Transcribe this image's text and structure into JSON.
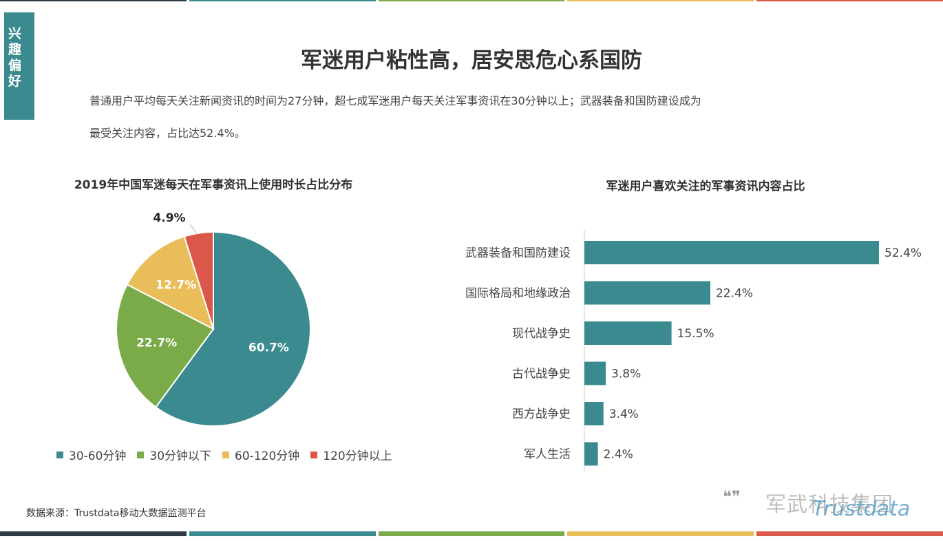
{
  "side_tab": [
    "兴",
    "趣",
    "偏",
    "好"
  ],
  "main_title": "军迷用户粘性高，居安思危心系国防",
  "description": [
    "普通用户平均每天关注新闻资讯的时间为27分钟，超七成军迷用户每天关注军事资讯在30分钟以上；武器装备和国防建设成为",
    "最受关注内容，占比达52.4%。"
  ],
  "source": "数据来源：Trustdata移动大数据监测平台",
  "watermark": {
    "text": "军武科技集团",
    "logo": "Trustdata"
  },
  "colors": {
    "teal": "#3a8a8f",
    "green": "#7aab48",
    "yellow": "#e8bd5a",
    "red": "#d9584a"
  },
  "stripe_colors": [
    "#2f3a45",
    "#3a8a8f",
    "#7aab48",
    "#e8bd5a",
    "#d9584a"
  ],
  "chart_data": [
    {
      "type": "pie",
      "title": "2019年中国军迷每天在军事资讯上使用时长占比分布",
      "slices": [
        {
          "label": "30-60分钟",
          "value": 60.7,
          "text": "60.7%",
          "color": "#3a8a8f"
        },
        {
          "label": "30分钟以下",
          "value": 22.7,
          "text": "22.7%",
          "color": "#7aab48"
        },
        {
          "label": "60-120分钟",
          "value": 12.7,
          "text": "12.7%",
          "color": "#e8bd5a"
        },
        {
          "label": "120分钟以上",
          "value": 4.9,
          "text": "4.9%",
          "color": "#d9584a"
        }
      ],
      "legend": "bottom"
    },
    {
      "type": "bar",
      "orientation": "horizontal",
      "title": "军迷用户喜欢关注的军事资讯内容占比",
      "categories": [
        "武器装备和国防建设",
        "国际格局和地缘政治",
        "现代战争史",
        "古代战争史",
        "西方战争史",
        "军人生活"
      ],
      "values": [
        52.4,
        22.4,
        15.5,
        3.8,
        3.4,
        2.4
      ],
      "labels": [
        "52.4%",
        "22.4%",
        "15.5%",
        "3.8%",
        "3.4%",
        "2.4%"
      ],
      "color": "#3a8a8f"
    }
  ]
}
